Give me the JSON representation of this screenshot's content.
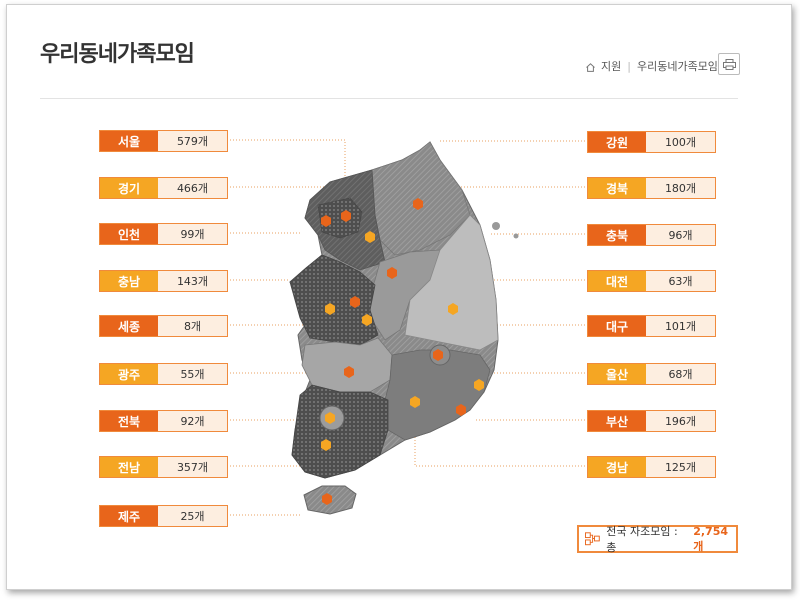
{
  "header": {
    "title": "우리동네가족모임"
  },
  "breadcrumb": {
    "items": [
      "지원",
      "우리동네가족모임"
    ]
  },
  "colors": {
    "accent_dark": "#e8651b",
    "accent_light": "#f5a623",
    "cell_bg": "#fdebd9",
    "border": "#f08a3c"
  },
  "regions_left": [
    {
      "name": "서울",
      "count": "579개",
      "color": "#e8651b"
    },
    {
      "name": "경기",
      "count": "466개",
      "color": "#f5a623"
    },
    {
      "name": "인천",
      "count": "99개",
      "color": "#e8651b"
    },
    {
      "name": "충남",
      "count": "143개",
      "color": "#f5a623"
    },
    {
      "name": "세종",
      "count": "8개",
      "color": "#e8651b"
    },
    {
      "name": "광주",
      "count": "55개",
      "color": "#f5a623"
    },
    {
      "name": "전북",
      "count": "92개",
      "color": "#e8651b"
    },
    {
      "name": "전남",
      "count": "357개",
      "color": "#f5a623"
    },
    {
      "name": "제주",
      "count": "25개",
      "color": "#e8651b"
    }
  ],
  "regions_right": [
    {
      "name": "강원",
      "count": "100개",
      "color": "#e8651b"
    },
    {
      "name": "경북",
      "count": "180개",
      "color": "#f5a623"
    },
    {
      "name": "충북",
      "count": "96개",
      "color": "#e8651b"
    },
    {
      "name": "대전",
      "count": "63개",
      "color": "#f5a623"
    },
    {
      "name": "대구",
      "count": "101개",
      "color": "#e8651b"
    },
    {
      "name": "울산",
      "count": "68개",
      "color": "#f5a623"
    },
    {
      "name": "부산",
      "count": "196개",
      "color": "#e8651b"
    },
    {
      "name": "경남",
      "count": "125개",
      "color": "#f5a623"
    }
  ],
  "total": {
    "label": "전국 자조모임 : 총",
    "value": "2,754개"
  }
}
